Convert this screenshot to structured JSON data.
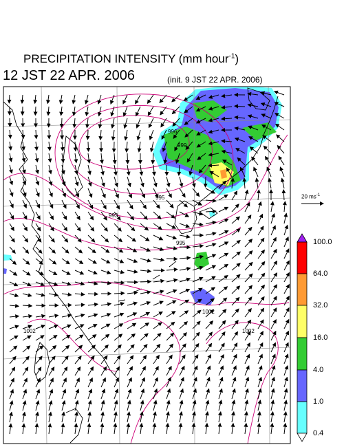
{
  "header": {
    "title_main": "PRECIPITATION INTENSITY (mm hour",
    "title_exp": "-1",
    "title_close": ")",
    "datetime": "12 JST 22 APR. 2006",
    "init": "(init. 9 JST 22 APR. 2006)"
  },
  "reference_vector": {
    "label_main": "20 ms",
    "label_exp": "-1"
  },
  "isobar_labels": [
    "996",
    "999",
    "995",
    "993",
    "995",
    "1002",
    "1002",
    "1002"
  ],
  "colorbar": {
    "levels": [
      "100.0",
      "64.0",
      "32.0",
      "16.0",
      "4.0",
      "1.0",
      "0.4"
    ],
    "colors": {
      "over": "#a020f0",
      "c64_100": "#ff0000",
      "c32_64": "#ff9a33",
      "c16_32": "#ffff66",
      "c4_16": "#33cc33",
      "c1_4": "#6666ff",
      "c04_1": "#66ffff",
      "under": "#ffffff"
    }
  },
  "colors": {
    "isobar": "#cc0077",
    "coast": "#000000",
    "grid": "#888888",
    "frame": "#000000"
  }
}
